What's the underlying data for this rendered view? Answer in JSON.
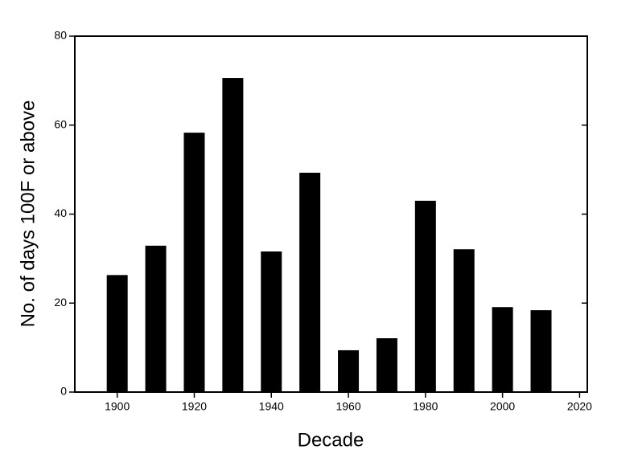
{
  "chart_data": {
    "type": "bar",
    "xlabel": "Decade",
    "ylabel": "No. of days 100F or above",
    "x": [
      1900,
      1910,
      1920,
      1930,
      1940,
      1950,
      1960,
      1970,
      1980,
      1990,
      2000,
      2010
    ],
    "values": [
      26.3,
      32.9,
      58.3,
      70.6,
      31.6,
      49.3,
      9.4,
      12.1,
      43.0,
      32.1,
      19.1,
      18.4
    ],
    "color": "#000000",
    "xlim": [
      1889,
      2022
    ],
    "xticks": [
      1900,
      1920,
      1940,
      1960,
      1980,
      2000,
      2020
    ],
    "ylim": [
      0,
      80
    ],
    "yticks": [
      0,
      20,
      40,
      60,
      80
    ]
  }
}
